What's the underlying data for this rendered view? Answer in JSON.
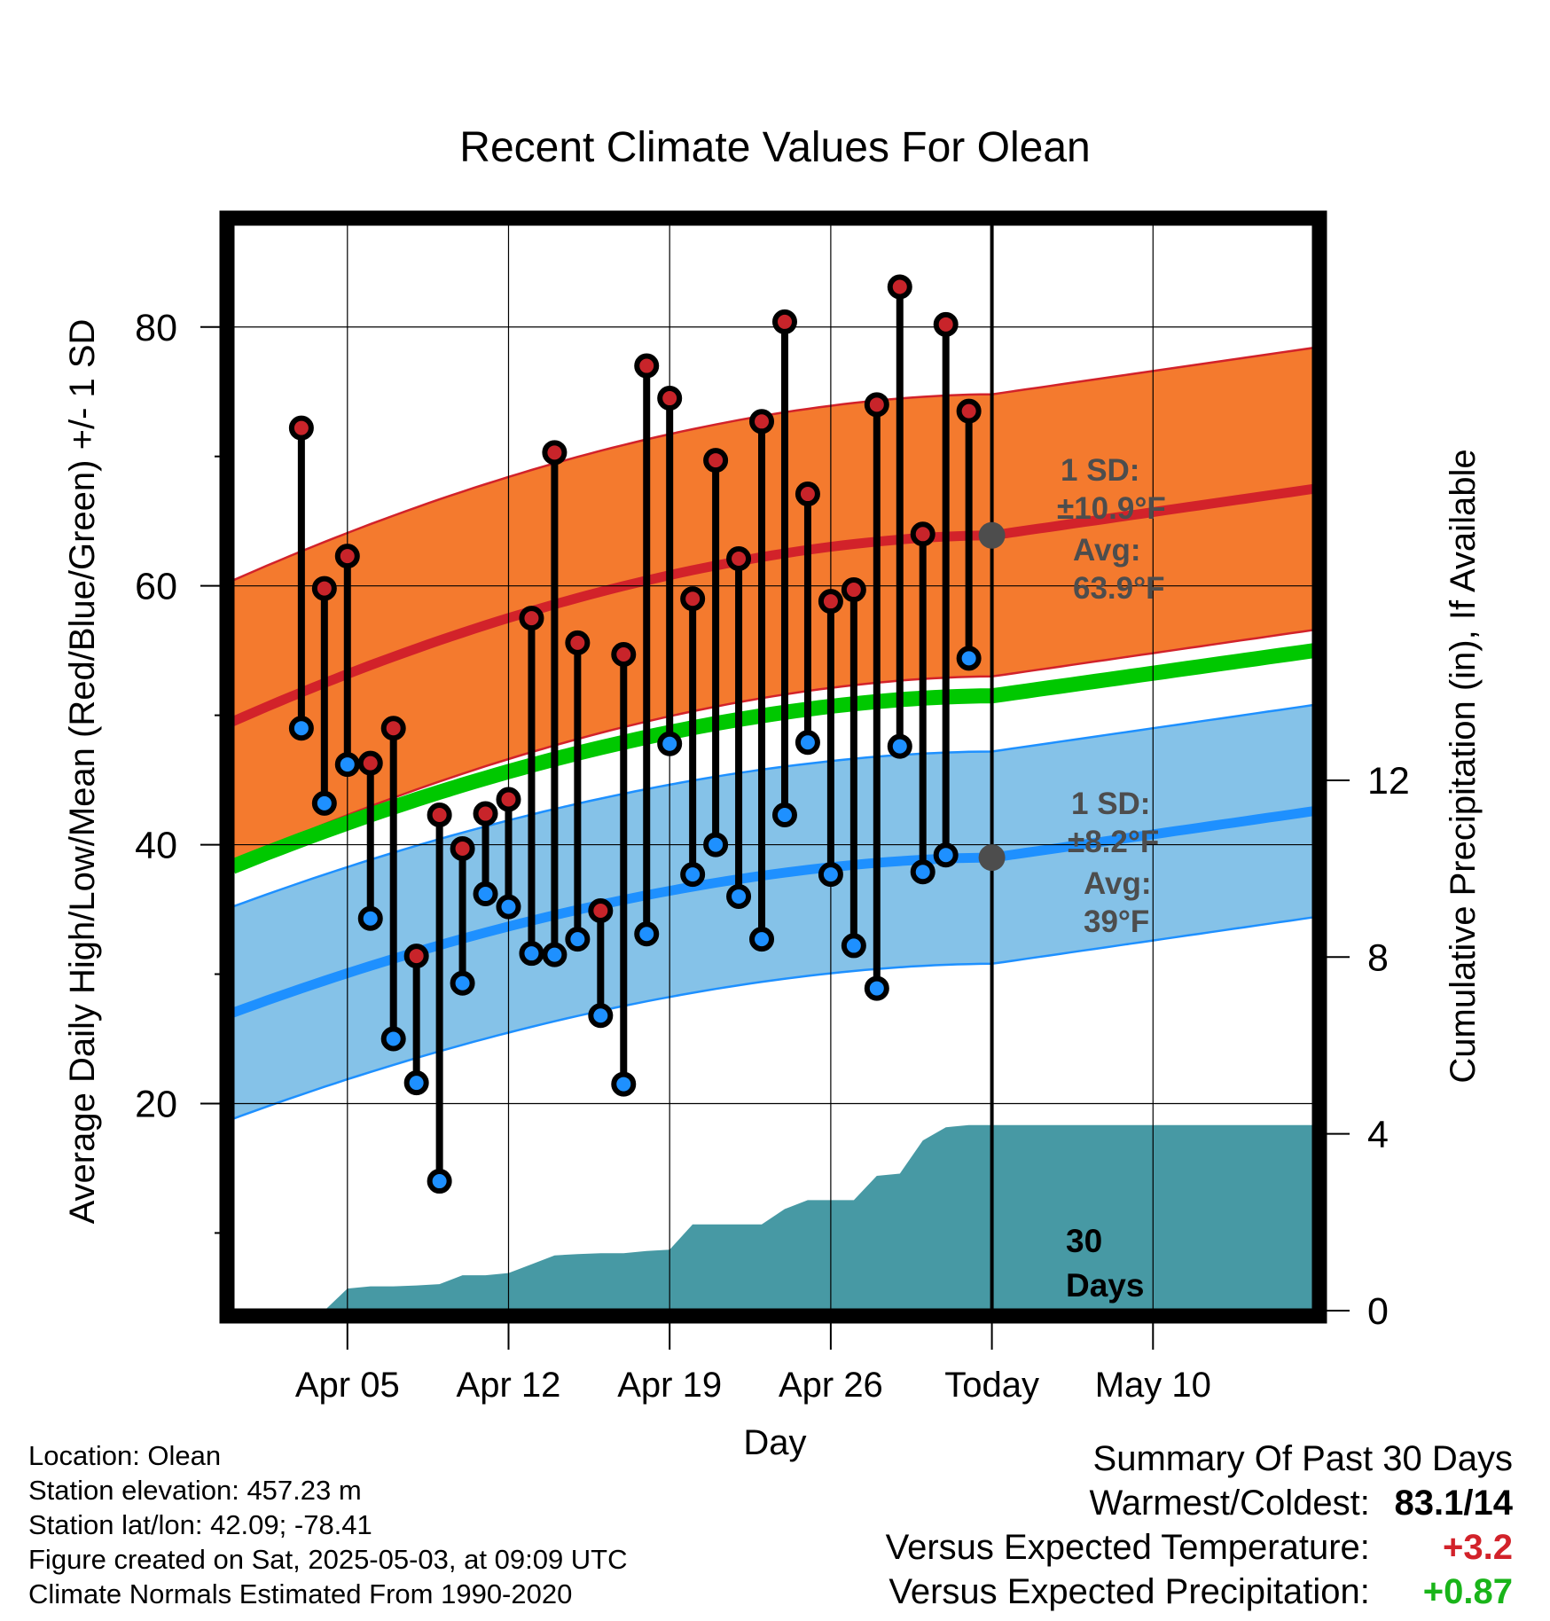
{
  "chart_data": {
    "type": "line",
    "title": "Recent Climate Values For Olean",
    "xlabel": "Day",
    "ylabel": "Average Daily High/Low/Mean (Red/Blue/Green) +/- 1 SD",
    "y2label": "Cumulative Precipitation (in), If Available",
    "x_range_days": [
      -33,
      14
    ],
    "x_ticks": [
      {
        "day": -28,
        "label": "Apr 05"
      },
      {
        "day": -21,
        "label": "Apr 12"
      },
      {
        "day": -14,
        "label": "Apr 19"
      },
      {
        "day": -7,
        "label": "Apr 26"
      },
      {
        "day": 0,
        "label": "Today"
      },
      {
        "day": 7,
        "label": "May 10"
      }
    ],
    "ylim": [
      4,
      88
    ],
    "y_major_ticks": [
      20,
      40,
      60,
      80
    ],
    "y_minor_ticks": [
      10,
      30,
      50,
      70
    ],
    "y2lim": [
      0,
      24.6
    ],
    "y2_ticks": [
      0,
      4,
      8,
      12
    ],
    "grid": true,
    "normal_high": {
      "start": 49.5,
      "today": 63.9,
      "end": 67.5
    },
    "normal_high_sd": 10.9,
    "normal_low": {
      "start": 27.0,
      "today": 39.0,
      "end": 42.6
    },
    "normal_low_sd": 8.2,
    "normal_mean": {
      "start": 38.3,
      "today": 51.5,
      "end": 55.0
    },
    "series": [
      {
        "name": "High",
        "days": [
          -30,
          -29,
          -28,
          -27,
          -26,
          -25,
          -24,
          -23,
          -22,
          -21,
          -20,
          -19,
          -18,
          -17,
          -16,
          -15,
          -14,
          -13,
          -12,
          -11,
          -10,
          -9,
          -8,
          -7,
          -6,
          -5,
          -4,
          -3,
          -2,
          -1
        ],
        "values": [
          72.2,
          59.8,
          62.3,
          46.3,
          49.0,
          31.4,
          42.3,
          39.7,
          42.4,
          43.5,
          57.5,
          70.3,
          55.6,
          34.9,
          54.7,
          77.0,
          74.5,
          59.0,
          69.7,
          62.1,
          72.7,
          80.4,
          67.1,
          58.8,
          59.7,
          74.0,
          83.1,
          64.0,
          80.2,
          73.5
        ]
      },
      {
        "name": "Low",
        "days": [
          -30,
          -29,
          -28,
          -27,
          -26,
          -25,
          -24,
          -23,
          -22,
          -21,
          -20,
          -19,
          -18,
          -17,
          -16,
          -15,
          -14,
          -13,
          -12,
          -11,
          -10,
          -9,
          -8,
          -7,
          -6,
          -5,
          -4,
          -3,
          -2,
          -1
        ],
        "values": [
          49.0,
          43.2,
          46.2,
          34.3,
          25.0,
          21.6,
          14.0,
          29.3,
          36.2,
          35.2,
          31.6,
          31.5,
          32.7,
          26.8,
          21.5,
          33.1,
          47.8,
          37.7,
          40.0,
          36.0,
          32.7,
          42.3,
          47.9,
          37.7,
          32.2,
          28.9,
          47.6,
          37.9,
          39.2,
          54.4
        ]
      }
    ],
    "precip": {
      "days": [
        -30,
        -29,
        -28,
        -27,
        -26,
        -25,
        -24,
        -23,
        -22,
        -21,
        -20,
        -19,
        -18,
        -17,
        -16,
        -15,
        -14,
        -13,
        -12,
        -11,
        -10,
        -9,
        -8,
        -7,
        -6,
        -5,
        -4,
        -3,
        -2,
        -1,
        0,
        14
      ],
      "values": [
        0,
        0,
        0.5,
        0.55,
        0.55,
        0.57,
        0.6,
        0.8,
        0.8,
        0.85,
        1.05,
        1.25,
        1.28,
        1.3,
        1.3,
        1.35,
        1.38,
        1.95,
        1.95,
        1.95,
        1.95,
        2.3,
        2.5,
        2.5,
        2.5,
        3.05,
        3.1,
        3.85,
        4.15,
        4.2,
        4.2,
        4.2
      ]
    },
    "today_markers": [
      {
        "sd_label": "1 SD:",
        "sd_value": "±10.9°F",
        "avg_label": "Avg:",
        "avg_value": "63.9°F",
        "y": 63.9
      },
      {
        "sd_label": "1 SD:",
        "sd_value": "±8.2°F",
        "avg_label": "Avg:",
        "avg_value": "39°F",
        "y": 39.0
      }
    ],
    "window_label": [
      "30",
      "Days"
    ],
    "colors": {
      "high_band": "#f47a2e",
      "high_line": "#d2222a",
      "low_band": "#85c2e8",
      "low_line": "#1e90ff",
      "mean_line": "#00c800",
      "precip": "#4799a4",
      "high_dot": "#c8242a",
      "low_dot": "#1e90ff",
      "annotation": "#4d4d4d"
    }
  },
  "info": {
    "location": "Location: Olean",
    "elevation": "Station elevation: 457.23 m",
    "latlon": "Station lat/lon: 42.09; -78.41",
    "created": "Figure created on Sat, 2025-05-03, at 09:09 UTC",
    "normals": "Climate Normals Estimated From 1990-2020"
  },
  "summary": {
    "title": "Summary Of Past 30 Days",
    "warm_cold_label": "Warmest/Coldest:",
    "warm_cold_value": "83.1/14",
    "temp_label": "Versus Expected Temperature:",
    "temp_value": "+3.2",
    "temp_color": "#d2222a",
    "precip_label": "Versus Expected Precipitation:",
    "precip_value": "+0.87",
    "precip_color": "#19b419"
  }
}
